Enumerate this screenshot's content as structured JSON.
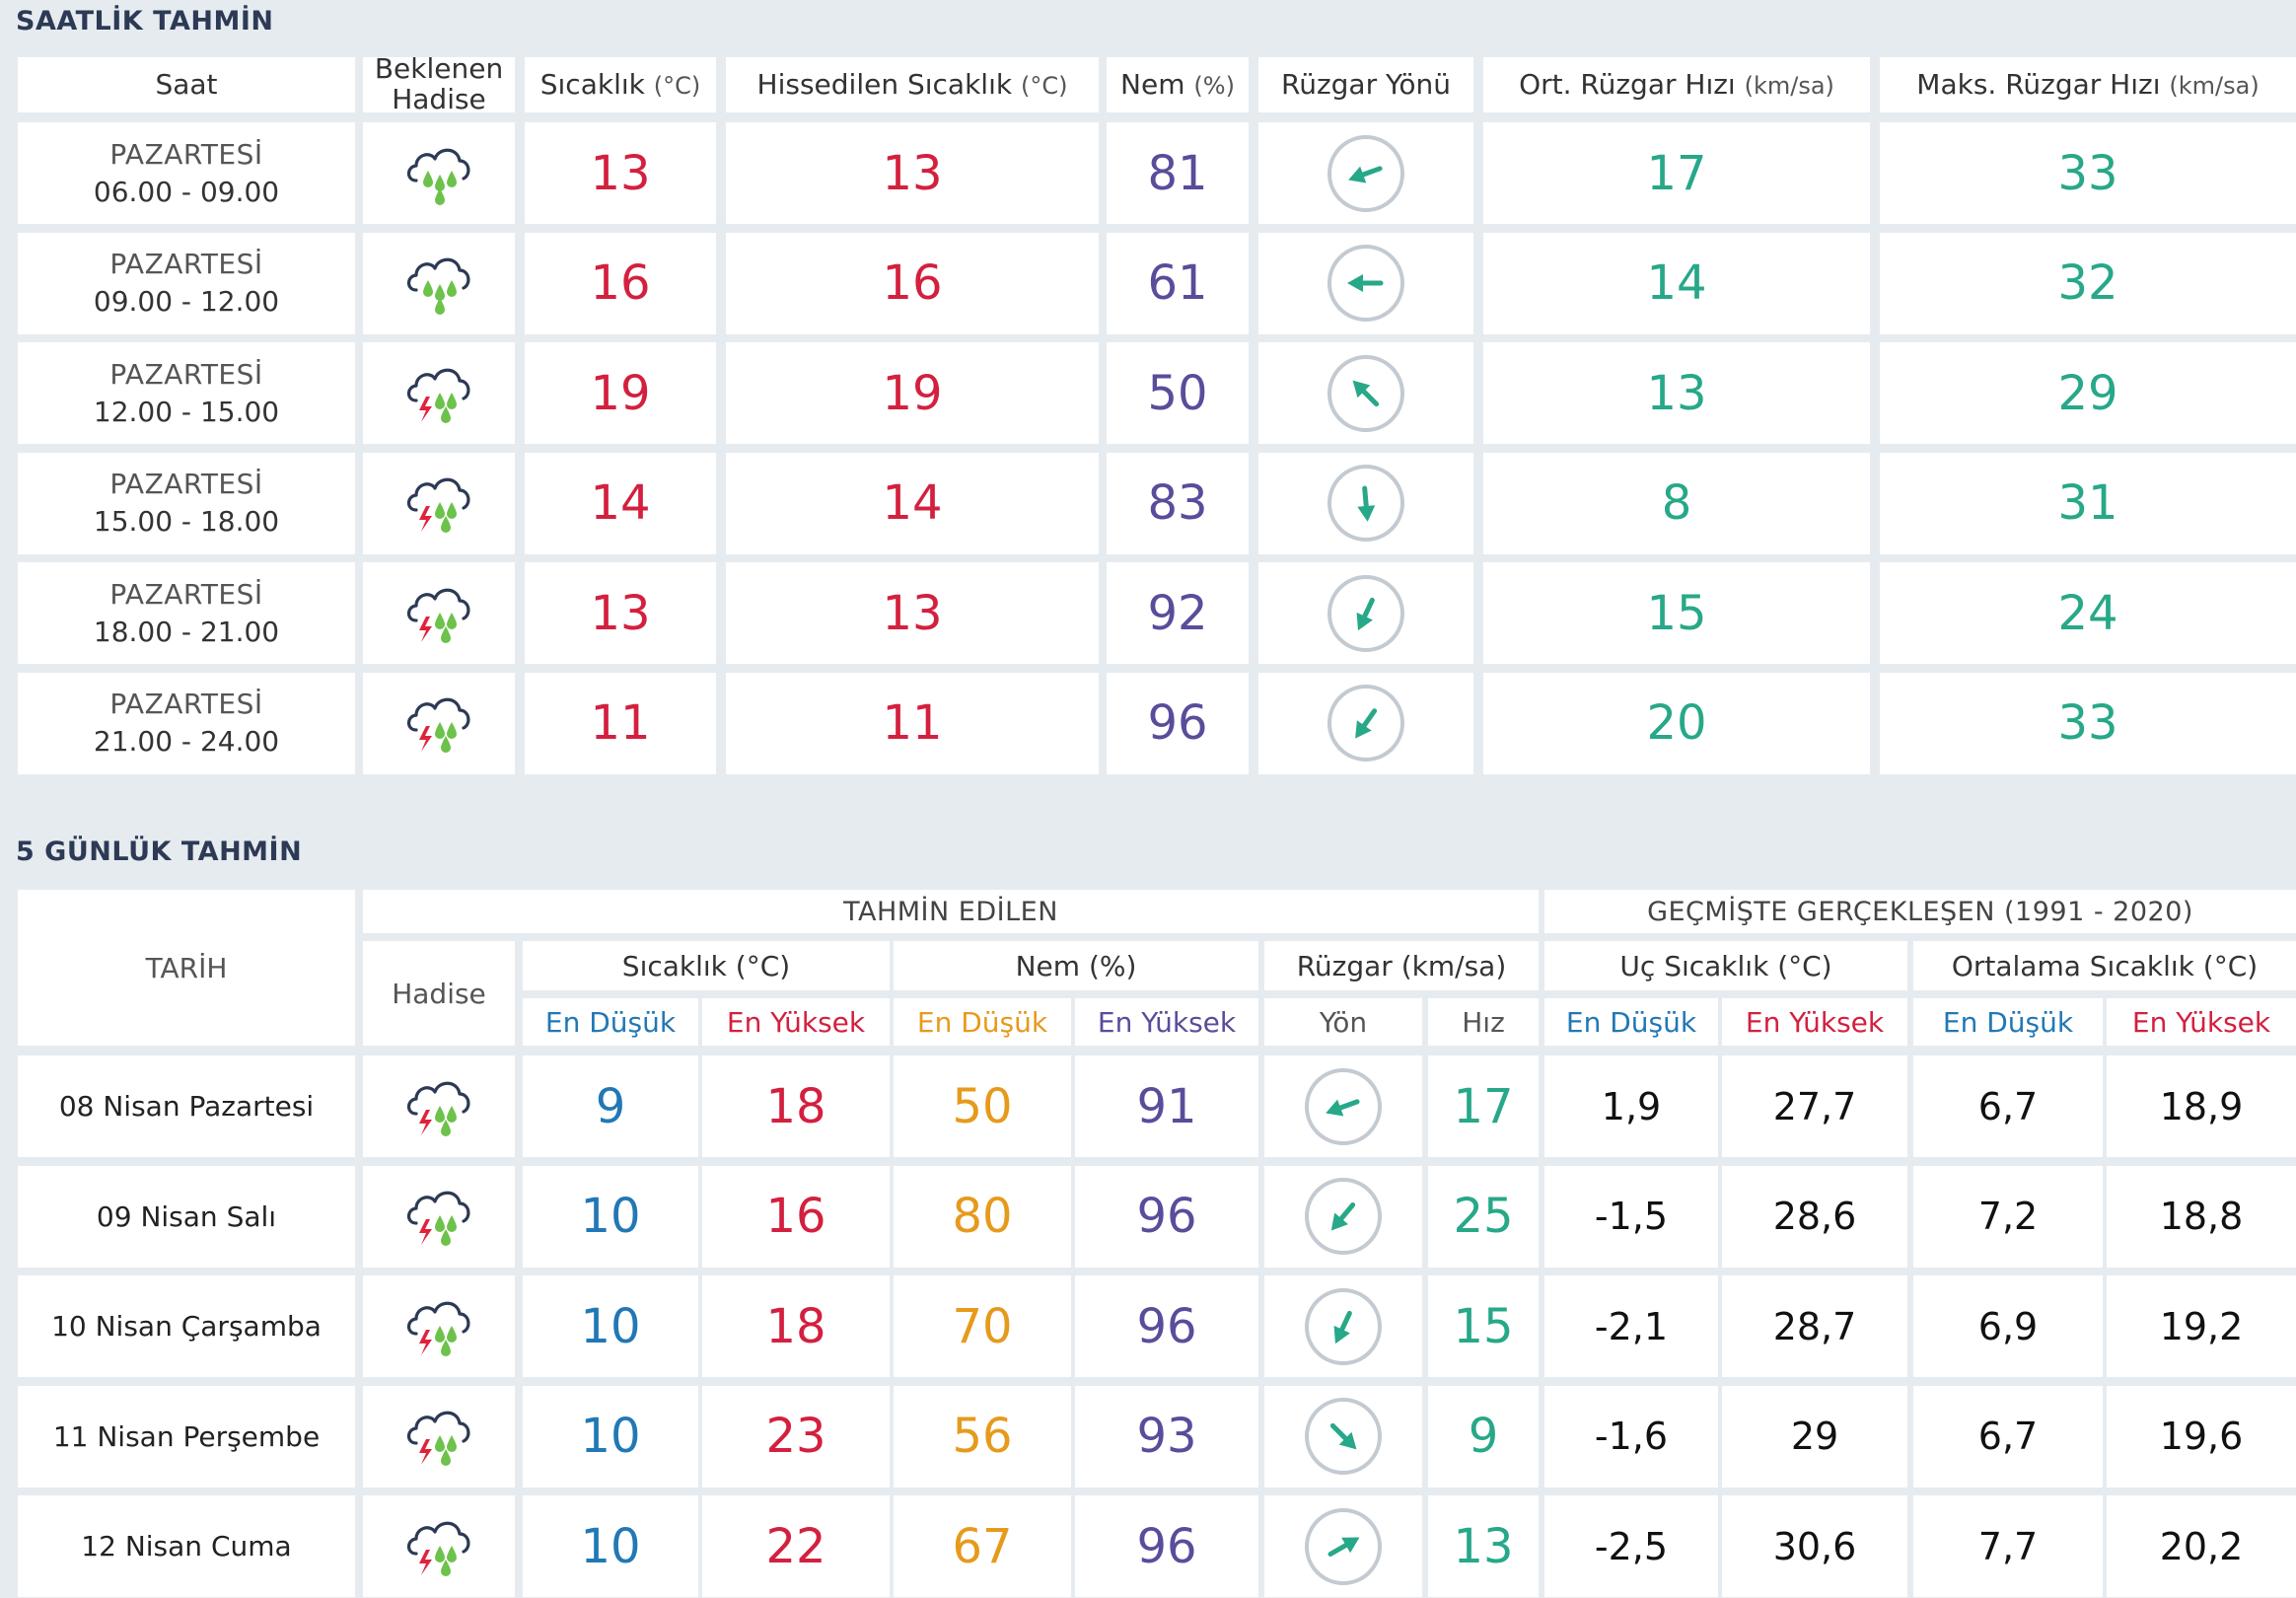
{
  "hourly": {
    "title": "SAATLİK TAHMİN",
    "headers": {
      "time": "Saat",
      "event_line1": "Beklenen",
      "event_line2": "Hadise",
      "temp": "Sıcaklık",
      "temp_unit": "(°C)",
      "feels": "Hissedilen Sıcaklık",
      "feels_unit": "(°C)",
      "humidity": "Nem",
      "humidity_unit": "(%)",
      "wind_dir": "Rüzgar Yönü",
      "wind_avg": "Ort. Rüzgar Hızı",
      "wind_avg_unit": "(km/sa)",
      "wind_max": "Maks. Rüzgar Hızı",
      "wind_max_unit": "(km/sa)"
    },
    "rows": [
      {
        "day": "PAZARTESİ",
        "time": "06.00 - 09.00",
        "icon": "rain-icon",
        "temp": "13",
        "feels": "13",
        "humidity": "81",
        "wind_dir_deg": 250,
        "wind_avg": "17",
        "wind_max": "33"
      },
      {
        "day": "PAZARTESİ",
        "time": "09.00 - 12.00",
        "icon": "rain-icon",
        "temp": "16",
        "feels": "16",
        "humidity": "61",
        "wind_dir_deg": 270,
        "wind_avg": "14",
        "wind_max": "32"
      },
      {
        "day": "PAZARTESİ",
        "time": "12.00 - 15.00",
        "icon": "thunderstorm-icon",
        "temp": "19",
        "feels": "19",
        "humidity": "50",
        "wind_dir_deg": 315,
        "wind_avg": "13",
        "wind_max": "29"
      },
      {
        "day": "PAZARTESİ",
        "time": "15.00 - 18.00",
        "icon": "thunderstorm-icon",
        "temp": "14",
        "feels": "14",
        "humidity": "83",
        "wind_dir_deg": 175,
        "wind_avg": "8",
        "wind_max": "31"
      },
      {
        "day": "PAZARTESİ",
        "time": "18.00 - 21.00",
        "icon": "thunderstorm-icon",
        "temp": "13",
        "feels": "13",
        "humidity": "92",
        "wind_dir_deg": 205,
        "wind_avg": "15",
        "wind_max": "24"
      },
      {
        "day": "PAZARTESİ",
        "time": "21.00 - 24.00",
        "icon": "thunderstorm-icon",
        "temp": "11",
        "feels": "11",
        "humidity": "96",
        "wind_dir_deg": 215,
        "wind_avg": "20",
        "wind_max": "33"
      }
    ]
  },
  "daily": {
    "title": "5 GÜNLÜK TAHMİN",
    "headers": {
      "date": "TARİH",
      "forecast_group": "TAHMİN EDİLEN",
      "history_group": "GEÇMİŞTE GERÇEKLEŞEN (1991 - 2020)",
      "event": "Hadise",
      "temp": "Sıcaklık (°C)",
      "humidity": "Nem (%)",
      "wind": "Rüzgar (km/sa)",
      "extreme_temp": "Uç Sıcaklık (°C)",
      "avg_temp": "Ortalama Sıcaklık (°C)",
      "low": "En Düşük",
      "high": "En Yüksek",
      "direction": "Yön",
      "speed": "Hız"
    },
    "rows": [
      {
        "date": "08 Nisan Pazartesi",
        "icon": "thunderstorm-icon",
        "temp_low": "9",
        "temp_high": "18",
        "hum_low": "50",
        "hum_high": "91",
        "wind_dir_deg": 250,
        "wind_speed": "17",
        "ext_low": "1,9",
        "ext_high": "27,7",
        "avg_low": "6,7",
        "avg_high": "18,9"
      },
      {
        "date": "09 Nisan Salı",
        "icon": "thunderstorm-icon",
        "temp_low": "10",
        "temp_high": "16",
        "hum_low": "80",
        "hum_high": "96",
        "wind_dir_deg": 220,
        "wind_speed": "25",
        "ext_low": "-1,5",
        "ext_high": "28,6",
        "avg_low": "7,2",
        "avg_high": "18,8"
      },
      {
        "date": "10 Nisan Çarşamba",
        "icon": "thunderstorm-icon",
        "temp_low": "10",
        "temp_high": "18",
        "hum_low": "70",
        "hum_high": "96",
        "wind_dir_deg": 205,
        "wind_speed": "15",
        "ext_low": "-2,1",
        "ext_high": "28,7",
        "avg_low": "6,9",
        "avg_high": "19,2"
      },
      {
        "date": "11 Nisan Perşembe",
        "icon": "thunderstorm-icon",
        "temp_low": "10",
        "temp_high": "23",
        "hum_low": "56",
        "hum_high": "93",
        "wind_dir_deg": 135,
        "wind_speed": "9",
        "ext_low": "-1,6",
        "ext_high": "29",
        "avg_low": "6,7",
        "avg_high": "19,6"
      },
      {
        "date": "12 Nisan Cuma",
        "icon": "thunderstorm-icon",
        "temp_low": "10",
        "temp_high": "22",
        "hum_low": "67",
        "hum_high": "96",
        "wind_dir_deg": 60,
        "wind_speed": "13",
        "ext_low": "-2,5",
        "ext_high": "30,6",
        "avg_low": "7,7",
        "avg_high": "20,2"
      }
    ]
  },
  "colors": {
    "temp": "#d3203f",
    "humidity": "#5b4c9b",
    "wind": "#27a888",
    "low": "#2178b5",
    "hum_low": "#e69a1c",
    "rain_drop": "#6cc24a",
    "lightning": "#e0223b",
    "cloud_outline": "#2d3a55"
  }
}
